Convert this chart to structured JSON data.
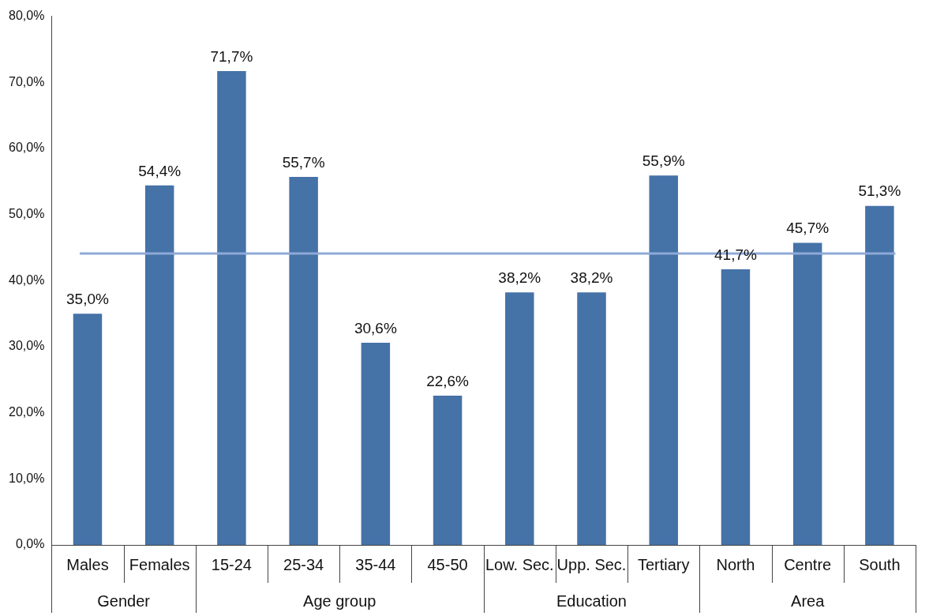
{
  "chart_data": {
    "type": "bar",
    "categories": [
      "Males",
      "Females",
      "15-24",
      "25-34",
      "35-44",
      "45-50",
      "Low. Sec.",
      "Upp. Sec.",
      "Tertiary",
      "North",
      "Centre",
      "South"
    ],
    "values": [
      35.0,
      54.4,
      71.7,
      55.7,
      30.6,
      22.6,
      38.2,
      38.2,
      55.9,
      41.7,
      45.7,
      51.3
    ],
    "value_labels": [
      "35,0%",
      "54,4%",
      "71,7%",
      "55,7%",
      "30,6%",
      "22,6%",
      "38,2%",
      "38,2%",
      "55,9%",
      "41,7%",
      "45,7%",
      "51,3%"
    ],
    "color": "#4572a7",
    "ylim": [
      0,
      80
    ],
    "yticks": [
      {
        "value": 0,
        "label": "0,0%"
      },
      {
        "value": 10,
        "label": "10,0%"
      },
      {
        "value": 20,
        "label": "20,0%"
      },
      {
        "value": 30,
        "label": "30,0%"
      },
      {
        "value": 40,
        "label": "40,0%"
      },
      {
        "value": 50,
        "label": "50,0%"
      },
      {
        "value": 60,
        "label": "60,0%"
      },
      {
        "value": 70,
        "label": "70,0%"
      },
      {
        "value": 80,
        "label": "80,0%"
      }
    ],
    "ref_lines": [
      {
        "axis": "y",
        "value": 44.1,
        "color": "#8eaad8"
      }
    ],
    "annotations": [
      "Gender",
      "Age group",
      "Education",
      "Area"
    ],
    "grid": false,
    "legend": false
  }
}
